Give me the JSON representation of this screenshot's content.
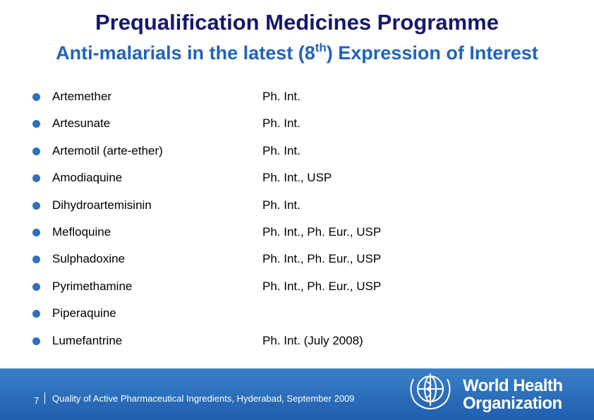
{
  "header": {
    "title": "Prequalification Medicines Programme",
    "subtitle": {
      "before": "Anti-malarials in the latest (8",
      "sup": "th",
      "after": ") Expression of Interest"
    }
  },
  "list": [
    {
      "name": "Artemether",
      "standard": "Ph. Int."
    },
    {
      "name": "Artesunate",
      "standard": "Ph. Int."
    },
    {
      "name": "Artemotil (arte-ether)",
      "standard": "Ph. Int."
    },
    {
      "name": "Amodiaquine",
      "standard": "Ph. Int., USP"
    },
    {
      "name": "Dihydroartemisinin",
      "standard": "Ph. Int."
    },
    {
      "name": "Mefloquine",
      "standard": "Ph. Int., Ph. Eur., USP"
    },
    {
      "name": "Sulphadoxine",
      "standard": "Ph. Int., Ph. Eur., USP"
    },
    {
      "name": "Pyrimethamine",
      "standard": "Ph. Int., Ph. Eur., USP"
    },
    {
      "name": "Piperaquine"
    },
    {
      "name": "Lumefantrine",
      "standard": "Ph. Int. (July 2008)"
    }
  ],
  "footer": {
    "page": "7",
    "text": "Quality of Active Pharmaceutical Ingredients, Hyderabad, September 2009",
    "logo": {
      "line1": "World Health",
      "line2": "Organization"
    }
  }
}
